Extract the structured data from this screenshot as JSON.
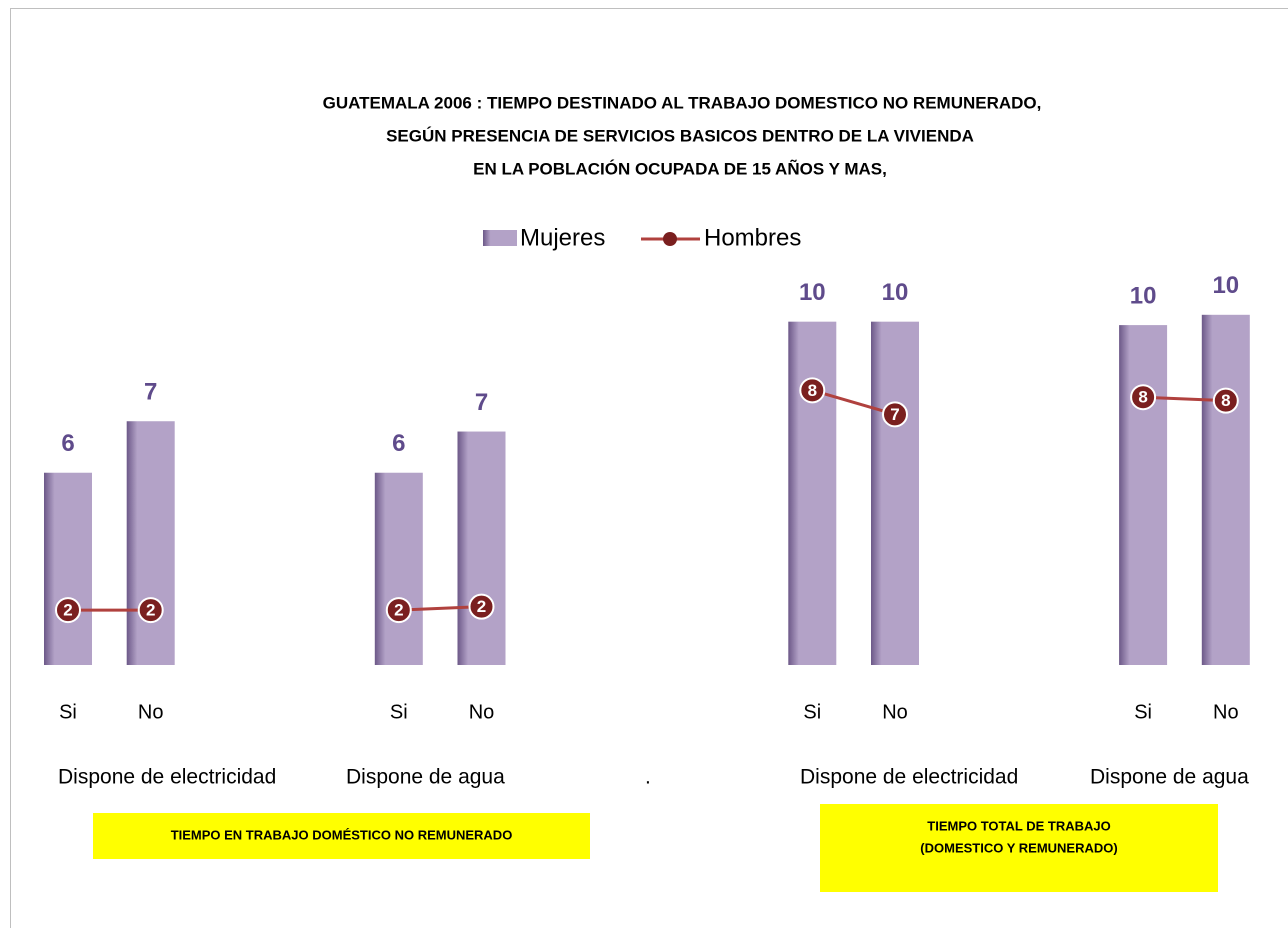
{
  "chart_data": {
    "type": "bar",
    "title": [
      "GUATEMALA 2006 : TIEMPO DESTINADO AL TRABAJO DOMESTICO NO REMUNERADO,",
      "SEGÚN PRESENCIA DE SERVICIOS BASICOS DENTRO DE LA VIVIENDA",
      "EN LA POBLACIÓN  OCUPADA DE 15 AÑOS Y MAS,"
    ],
    "categories": [
      "Si",
      "No",
      null,
      null,
      "Si",
      "No",
      null,
      null,
      null,
      "Si",
      "No",
      null,
      null,
      "Si",
      "No"
    ],
    "group_labels": [
      "Dispone de electricidad",
      "Dispone de agua",
      ".",
      "Dispone de electricidad",
      "Dispone de agua"
    ],
    "series": [
      {
        "name": "Mujeres",
        "type": "bar",
        "color": "#b3a2c7",
        "values": [
          5.6,
          7.1,
          null,
          null,
          5.6,
          6.8,
          null,
          null,
          null,
          10.0,
          10.0,
          null,
          null,
          9.9,
          10.2
        ],
        "value_labels": [
          "6",
          "7",
          null,
          null,
          "6",
          "7",
          null,
          null,
          null,
          "10",
          "10",
          null,
          null,
          "10",
          "10"
        ]
      },
      {
        "name": "Hombres",
        "type": "line",
        "color": "#b0413e",
        "marker_color": "#7a1f1f",
        "values": [
          1.6,
          1.6,
          null,
          null,
          1.6,
          1.7,
          null,
          null,
          null,
          8.0,
          7.3,
          null,
          null,
          7.8,
          7.7
        ],
        "value_labels": [
          "2",
          "2",
          null,
          null,
          "2",
          "2",
          null,
          null,
          null,
          "8",
          "7",
          null,
          null,
          "8",
          "8"
        ]
      }
    ],
    "ylim": [
      0,
      12
    ],
    "legend": "top",
    "annotations": [
      [
        "TIEMPO EN TRABAJO  DOMÉSTICO NO REMUNERADO"
      ],
      [
        "TIEMPO TOTAL DE TRABAJO",
        "(DOMESTICO  Y REMUNERADO)"
      ]
    ]
  }
}
